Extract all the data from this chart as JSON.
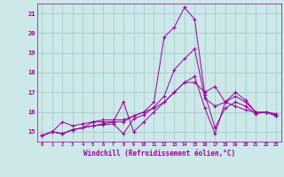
{
  "background_color": "#cce8e8",
  "grid_color": "#aacccc",
  "line_color": "#990099",
  "xlabel": "Windchill (Refroidissement éolien,°C)",
  "xlim": [
    -0.5,
    23.5
  ],
  "ylim": [
    14.5,
    21.5
  ],
  "yticks": [
    15,
    16,
    17,
    18,
    19,
    20,
    21
  ],
  "xticks": [
    0,
    1,
    2,
    3,
    4,
    5,
    6,
    7,
    8,
    9,
    10,
    11,
    12,
    13,
    14,
    15,
    16,
    17,
    18,
    19,
    20,
    21,
    22,
    23
  ],
  "series": [
    [
      14.8,
      15.0,
      14.9,
      15.1,
      15.2,
      15.3,
      15.35,
      15.4,
      14.9,
      15.65,
      15.85,
      16.25,
      16.8,
      18.15,
      18.7,
      19.2,
      16.7,
      16.3,
      16.5,
      16.3,
      16.1,
      16.0,
      16.0,
      15.9
    ],
    [
      14.8,
      15.0,
      15.5,
      15.3,
      15.4,
      15.5,
      15.5,
      15.5,
      16.5,
      15.0,
      15.5,
      16.0,
      16.5,
      17.0,
      17.5,
      17.5,
      17.0,
      17.3,
      16.5,
      17.0,
      16.6,
      16.0,
      16.0,
      15.9
    ],
    [
      14.8,
      15.0,
      14.9,
      15.1,
      15.2,
      15.5,
      15.6,
      15.6,
      15.6,
      15.8,
      16.0,
      16.2,
      16.5,
      17.0,
      17.5,
      17.8,
      16.2,
      14.9,
      16.5,
      16.8,
      16.5,
      16.0,
      16.0,
      15.8
    ],
    [
      14.8,
      15.0,
      14.9,
      15.1,
      15.2,
      15.3,
      15.4,
      15.5,
      15.5,
      15.8,
      16.0,
      16.5,
      19.8,
      20.3,
      21.3,
      20.7,
      16.9,
      15.2,
      16.2,
      16.5,
      16.3,
      15.9,
      16.0,
      15.8
    ]
  ]
}
